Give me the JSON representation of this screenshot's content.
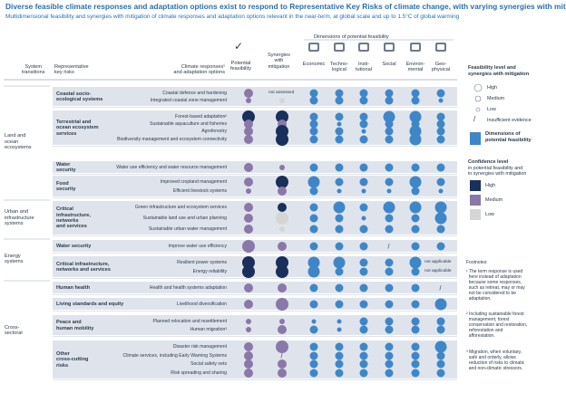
{
  "title": "Diverse feasible climate responses and adaptation options exist to respond to Representative Key Risks of climate change, with varying synergies with mitigation",
  "subtitle": "Multidimensional feasibility and synergies with mitigation of climate responses and adaptation options relevant in the near-term, at global scale and up to 1.5°C of global warming",
  "headers": {
    "system": "System\ntransitions",
    "risks": "Representative\nkey risks",
    "responses": "Climate responses¹\nand adaptation options",
    "feasibility": "Potential\nfeasibility",
    "synergies": "Synergies\nwith\nmitigation",
    "dimensions_title": "Dimensions of potential feasibility",
    "checkmark": "✓"
  },
  "chart_data": {
    "type": "dot-matrix",
    "columns": [
      "Potential feasibility",
      "Synergies with mitigation",
      "Economic",
      "Technological",
      "Institutional",
      "Social",
      "Environmental",
      "Geophysical"
    ],
    "column_labels": [
      "Economic",
      "Techno-\nlogical",
      "Insti-\ntutional",
      "Social",
      "Environ-\nmental",
      "Geo-\nphysical"
    ],
    "column_icons": [
      "coins-icon",
      "phone-icon",
      "institution-icon",
      "people-icon",
      "leaf-icon",
      "mountain-icon"
    ],
    "size_levels": {
      "high": 3,
      "medium": 2,
      "low": 1
    },
    "confidence_levels": [
      "High",
      "Medium",
      "Low"
    ],
    "systems": [
      {
        "name": "Land and\nocean\necosystems"
      },
      {
        "name": "Urban and\ninfrastructure\nsystems"
      },
      {
        "name": "Energy\nsystems"
      },
      {
        "name": "Cross-\nsectoral"
      }
    ],
    "risk_groups": [
      {
        "name": "Coastal socio-\necological systems",
        "system": 0,
        "rows": [
          0,
          1
        ]
      },
      {
        "name": "Terrestrial and\nocean ecosystem\nservices",
        "system": 0,
        "rows": [
          2,
          3,
          4,
          5
        ]
      },
      {
        "name": "Water\nsecurity",
        "system": 0,
        "rows": [
          6
        ]
      },
      {
        "name": "Food\nsecurity",
        "system": 0,
        "rows": [
          7,
          8
        ]
      },
      {
        "name": "Critical\ninfrastructure,\nnetworks\nand services",
        "system": 1,
        "rows": [
          9,
          10,
          11
        ]
      },
      {
        "name": "Water security",
        "system": 2,
        "rows": [
          12
        ]
      },
      {
        "name": "Critical infrastructure,\nnetworks and services",
        "system": 2,
        "rows": [
          13,
          14
        ]
      },
      {
        "name": "Human health",
        "system": 3,
        "rows": [
          15
        ]
      },
      {
        "name": "Living standards and equity",
        "system": 3,
        "rows": [
          16
        ]
      },
      {
        "name": "Peace and\nhuman mobility",
        "system": 3,
        "rows": [
          17,
          18
        ]
      },
      {
        "name": "Other\ncross-cutting\nrisks",
        "system": 3,
        "rows": [
          19,
          20,
          21,
          22
        ]
      }
    ],
    "rows": [
      {
        "label": "Coastal defence and hardening",
        "feas": [
          2,
          "M"
        ],
        "syn": null,
        "syn_text": "not assessed",
        "dims": [
          2,
          2,
          2,
          2,
          2,
          2
        ]
      },
      {
        "label": "Integrated coastal zone management",
        "feas": [
          1,
          "M"
        ],
        "syn": [
          1,
          "L"
        ],
        "dims": [
          2,
          2,
          2,
          2,
          2,
          1
        ]
      },
      {
        "label": "Forest-based adaptation²",
        "feas": [
          3,
          "H"
        ],
        "syn": [
          3,
          "H"
        ],
        "dims": [
          2,
          2,
          2,
          3,
          3,
          2
        ]
      },
      {
        "label": "Sustainable aquaculture and fisheries",
        "feas": [
          2,
          "M"
        ],
        "syn": [
          2,
          "M"
        ],
        "dims": [
          2,
          1,
          2,
          2,
          2,
          2
        ]
      },
      {
        "label": "Agroforestry",
        "feas": [
          2,
          "M"
        ],
        "syn": [
          3,
          "H"
        ],
        "dims": [
          2,
          2,
          1,
          2,
          3,
          2
        ]
      },
      {
        "label": "Biodiversity management and ecosystem connectivity",
        "feas": [
          2,
          "M"
        ],
        "syn": [
          3,
          "H"
        ],
        "dims": [
          2,
          2,
          2,
          2,
          3,
          2
        ]
      },
      {
        "label": "Water use efficiency and water resource management",
        "feas": [
          2,
          "M"
        ],
        "syn": [
          1,
          "M"
        ],
        "dims": [
          2,
          2,
          2,
          2,
          2,
          2
        ]
      },
      {
        "label": "Improved cropland management",
        "feas": [
          2,
          "M"
        ],
        "syn": [
          3,
          "H"
        ],
        "dims": [
          3,
          2,
          2,
          2,
          3,
          2
        ]
      },
      {
        "label": "Efficient livestock systems",
        "feas": [
          1,
          "M"
        ],
        "syn": [
          2,
          "M"
        ],
        "dims": [
          2,
          1,
          1,
          1,
          2,
          1
        ]
      },
      {
        "label": "Green infrastructure and ecosystem services",
        "feas": [
          2,
          "M"
        ],
        "syn": [
          2,
          "H"
        ],
        "dims": [
          2,
          3,
          2,
          3,
          3,
          3
        ]
      },
      {
        "label": "Sustainable land use and urban planning",
        "feas": [
          2,
          "M"
        ],
        "syn": [
          3,
          "L"
        ],
        "dims": [
          2,
          2,
          1,
          2,
          2,
          3
        ]
      },
      {
        "label": "Sustainable urban water management",
        "feas": [
          2,
          "M"
        ],
        "syn": [
          1,
          "L"
        ],
        "dims": [
          2,
          2,
          2,
          2,
          2,
          2
        ]
      },
      {
        "label": "Improve water use efficiency",
        "feas": [
          3,
          "M"
        ],
        "syn": [
          2,
          "M"
        ],
        "dims": [
          2,
          2,
          2,
          0,
          2,
          2
        ]
      },
      {
        "label": "Resilient power systems",
        "feas": [
          3,
          "H"
        ],
        "syn": [
          3,
          "H"
        ],
        "dims": [
          3,
          3,
          2,
          2,
          3,
          0
        ],
        "geo_text": "not applicable"
      },
      {
        "label": "Energy reliability",
        "feas": [
          3,
          "H"
        ],
        "syn": [
          3,
          "H"
        ],
        "dims": [
          3,
          2,
          2,
          2,
          2,
          0
        ],
        "geo_text": "not applicable"
      },
      {
        "label": "Health and health systems adaptation",
        "feas": [
          2,
          "M"
        ],
        "syn": [
          2,
          "M"
        ],
        "dims": [
          2,
          2,
          2,
          2,
          2,
          0
        ]
      },
      {
        "label": "Livelihood diversification",
        "feas": [
          2,
          "M"
        ],
        "syn": [
          3,
          "M"
        ],
        "dims": [
          2,
          2,
          2,
          2,
          2,
          3
        ]
      },
      {
        "label": "Planned relocation and resettlement",
        "feas": [
          1,
          "M"
        ],
        "syn": [
          1,
          "M"
        ],
        "dims": [
          1,
          1,
          2,
          2,
          2,
          2
        ]
      },
      {
        "label": "Human migration³",
        "feas": [
          1,
          "M"
        ],
        "syn": [
          2,
          "M"
        ],
        "dims": [
          2,
          1,
          2,
          2,
          2,
          2
        ]
      },
      {
        "label": "Disaster risk management",
        "feas": [
          2,
          "M"
        ],
        "syn": [
          3,
          "M"
        ],
        "dims": [
          2,
          2,
          2,
          2,
          2,
          3
        ]
      },
      {
        "label": "Climate services, including Early Warning Systems",
        "feas": [
          2,
          "M"
        ],
        "syn": null,
        "dims": [
          2,
          2,
          2,
          2,
          2,
          2
        ]
      },
      {
        "label": "Social safety nets",
        "feas": [
          2,
          "M"
        ],
        "syn": [
          2,
          "M"
        ],
        "dims": [
          2,
          2,
          2,
          2,
          2,
          2
        ]
      },
      {
        "label": "Risk spreading and sharing",
        "feas": [
          2,
          "M"
        ],
        "syn": [
          2,
          "M"
        ],
        "dims": [
          2,
          2,
          2,
          2,
          2,
          2
        ]
      }
    ]
  },
  "legend": {
    "title": "Feasibility level and\nsynergies with mitigation",
    "high": "High",
    "medium": "Medium",
    "low": "Low",
    "insufficient": "Insufficient evidence",
    "dimensions": "Dimensions of\npotential feasibility",
    "confidence_title": "Confidence level",
    "confidence_sub": "in potential feasibility and\nin synergies with mitigation",
    "conf_high": "High",
    "conf_medium": "Medium",
    "conf_low": "Low",
    "slash": "/"
  },
  "footnotes": {
    "title": "Footnotes:",
    "n1": "¹ The term response is used\n  here instead of adaptation\n  because some responses,\n  such as retreat, may or may\n  not be considered to be\n  adaptation.",
    "n2": "² Including sustainable forest\n  management, forest\n  conservation and restoration,\n  reforestation and\n  afforestation.",
    "n3": "³ Migration, when voluntary,\n  safe and orderly, allows\n  reduction of risks to climatic\n  and non-climatic stressors."
  },
  "colors": {
    "title": "#2a6fb0",
    "band": "#dfe4ec",
    "dim_dot": "#3f86c9",
    "conf_high": "#1a2f5a",
    "conf_medium": "#8a78a8",
    "conf_low": "#d5d5d5",
    "rule": "#9aa8b8"
  }
}
